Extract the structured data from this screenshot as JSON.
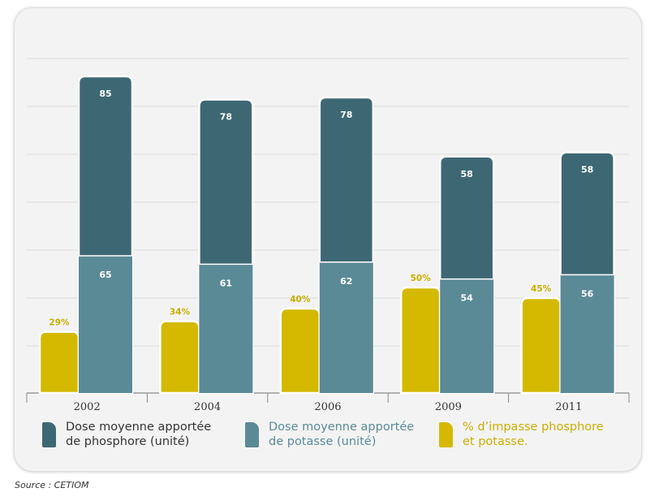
{
  "chart_data": {
    "type": "bar",
    "categories": [
      "2002",
      "2004",
      "2006",
      "2009",
      "2011"
    ],
    "series": [
      {
        "name": "% d'impasse phosphore et potasse.",
        "values": [
          29,
          34,
          40,
          50,
          45
        ],
        "labels": [
          "29%",
          "34%",
          "40%",
          "50%",
          "45%"
        ],
        "color": "#d4b900"
      },
      {
        "name": "Dose moyenne apportée de potasse (unité)",
        "values": [
          65,
          61,
          62,
          54,
          56
        ],
        "color": "#5b8a97"
      },
      {
        "name": "Dose moyenne apportée de phosphore (unité)",
        "values": [
          85,
          78,
          78,
          58,
          58
        ],
        "color": "#3d6873"
      }
    ],
    "stacked": [
      "Dose moyenne apportée de potasse (unité)",
      "Dose moyenne apportée de phosphore (unité)"
    ],
    "ylim": [
      0,
      165
    ],
    "grid": true,
    "legend_position": "bottom"
  },
  "legend": [
    {
      "line1": "Dose moyenne apportée",
      "line2": "de phosphore (unité)",
      "color": "#3d6873",
      "text_color": "#333333"
    },
    {
      "line1": "Dose moyenne apportée",
      "line2": "de potasse (unité)",
      "color": "#5b8a97",
      "text_color": "#5b8a97"
    },
    {
      "line1": "% d’impasse phosphore",
      "line2": "et potasse.",
      "color": "#d4b900",
      "text_color": "#c9ae00"
    }
  ],
  "source": "Source : CETIOM"
}
